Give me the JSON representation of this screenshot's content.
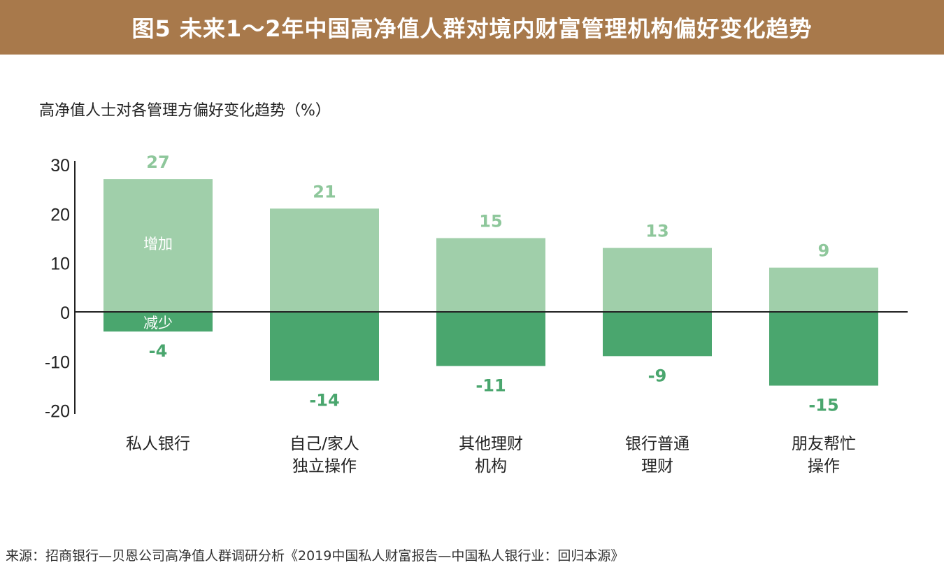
{
  "header": {
    "title": "图5 未来1～2年中国高净值人群对境内财富管理机构偏好变化趋势"
  },
  "colors": {
    "header_bg": "#a8794b",
    "increase": "#a0cfaa",
    "decrease": "#4aa66e",
    "increase_label": "#8ec79b",
    "decrease_label": "#4aa66e"
  },
  "chart_data": {
    "type": "bar",
    "title": "高净值人士对各管理方偏好变化趋势（%）",
    "categories": [
      "私人银行",
      "自己/家人\n独立操作",
      "其他理财\n机构",
      "银行普通\n理财",
      "朋友帮忙\n操作"
    ],
    "series": [
      {
        "name": "增加",
        "values": [
          27,
          21,
          15,
          13,
          9
        ]
      },
      {
        "name": "减少",
        "values": [
          -4,
          -14,
          -11,
          -9,
          -15
        ]
      }
    ],
    "value_labels": {
      "increase": [
        "27",
        "21",
        "15",
        "13",
        "9"
      ],
      "decrease": [
        "-4",
        "-14",
        "-11",
        "-9",
        "-15"
      ]
    },
    "ylim": [
      -20,
      30
    ],
    "yticks": [
      30,
      20,
      10,
      0,
      -10,
      -20
    ],
    "legend": "inside-first-bar",
    "grid": false
  },
  "footer": {
    "source": "来源：招商银行—贝恩公司高净值人群调研分析《2019中国私人财富报告—中国私人银行业：回归本源》"
  }
}
